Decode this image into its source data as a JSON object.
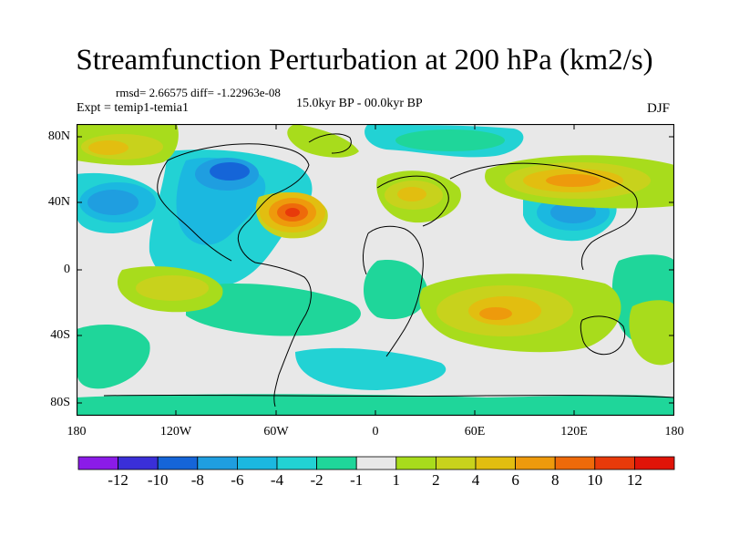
{
  "map": {
    "title": "Streamfunction Perturbation at 200 hPa (km2/s)",
    "stats": "rmsd= 2.66575 diff= -1.22963e-08",
    "experiment": "Expt = temip1-temia1",
    "period": "15.0kyr BP - 00.0kyr BP",
    "season": "DJF",
    "lat_labels": [
      "80N",
      "40N",
      "0",
      "40S",
      "80S"
    ],
    "lon_labels": [
      "180",
      "120W",
      "60W",
      "0",
      "60E",
      "120E",
      "180"
    ]
  },
  "colorbar": {
    "labels": [
      "-12",
      "-10",
      "-8",
      "-6",
      "-4",
      "-2",
      "-1",
      "1",
      "2",
      "4",
      "6",
      "8",
      "10",
      "12"
    ],
    "colors": [
      "#8b1be8",
      "#3a2fd8",
      "#1565d8",
      "#1f9ee0",
      "#1bb8e0",
      "#22d2d4",
      "#1fd69a",
      "#e8e8e8",
      "#a8dc1c",
      "#c8d21c",
      "#e2be10",
      "#ee9a0c",
      "#ee6a0a",
      "#e83a0a",
      "#e01408"
    ]
  }
}
